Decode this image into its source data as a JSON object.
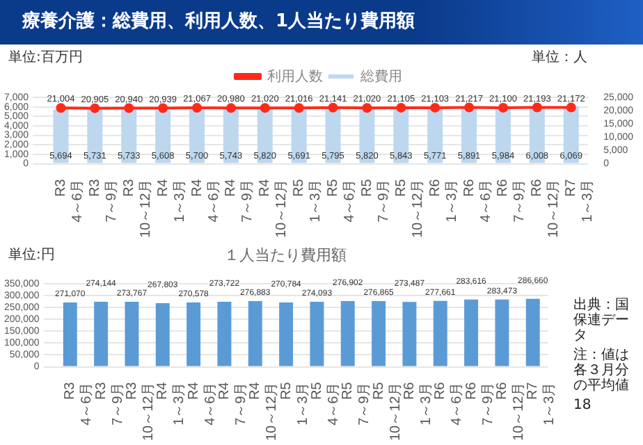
{
  "chart_data": [
    {
      "type": "bar",
      "title": "療養介護：総費用、利用人数、1人当たり費用額",
      "ylabel": "単位:百万円",
      "y2label": "単位：人",
      "categories": [
        "R3\n4～6月",
        "R3\n7～9月",
        "R3\n10～12月",
        "R4\n1～3月",
        "R4\n4～6月",
        "R4\n7～9月",
        "R4\n10～12月",
        "R5\n1～3月",
        "R5\n4～6月",
        "R5\n7～9月",
        "R5\n10～12月",
        "R6\n1～3月",
        "R6\n4～6月",
        "R6\n7～9月",
        "R6\n10～12月",
        "R7\n1～3月"
      ],
      "series": [
        {
          "name": "総費用",
          "type": "bar",
          "color": "#bdd7ee",
          "values": [
            5694,
            5731,
            5733,
            5608,
            5700,
            5743,
            5820,
            5691,
            5795,
            5820,
            5843,
            5771,
            5891,
            5984,
            6008,
            6069
          ],
          "value_labels": [
            "5,694",
            "5,731",
            "5,733",
            "5,608",
            "5,700",
            "5,743",
            "5,820",
            "5,691",
            "5,795",
            "5,820",
            "5,843",
            "5,771",
            "5,891",
            "5,984",
            "6,008",
            "6,069"
          ]
        },
        {
          "name": "利用人数",
          "type": "line",
          "axis": "y2",
          "color": "#ff2a1a",
          "values": [
            21004,
            20905,
            20940,
            20939,
            21067,
            20980,
            21020,
            21016,
            21141,
            21020,
            21105,
            21103,
            21217,
            21100,
            21193,
            21172
          ],
          "value_labels": [
            "21,004",
            "20,905",
            "20,940",
            "20,939",
            "21,067",
            "20,980",
            "21,020",
            "21,016",
            "21,141",
            "21,020",
            "21,105",
            "21,103",
            "21,217",
            "21,100",
            "21,193",
            "21,172"
          ]
        }
      ],
      "ylim": [
        0,
        7000
      ],
      "yticks": [
        0,
        {
          "value": 1000,
          "label": "1,000"
        },
        {
          "value": 2000,
          "label": "2,000"
        },
        {
          "value": 3000,
          "label": "3,000"
        },
        {
          "value": 4000,
          "label": "4,000"
        },
        {
          "value": 5000,
          "label": "5,000"
        },
        {
          "value": 6000,
          "label": "6,000"
        },
        {
          "value": 7000,
          "label": "7,000"
        }
      ],
      "y2lim": [
        0,
        25000
      ],
      "y2ticks": [
        0,
        {
          "value": 5000,
          "label": "5,000"
        },
        {
          "value": 10000,
          "label": "10,000"
        },
        {
          "value": 15000,
          "label": "15,000"
        },
        {
          "value": 20000,
          "label": "20,000"
        },
        {
          "value": 25000,
          "label": "25,000"
        }
      ],
      "grid": "y",
      "legend": "top",
      "marker": "circle"
    },
    {
      "type": "bar",
      "title": "１人当たり費用額",
      "ylabel": "単位:円",
      "categories": [
        "R3\n4～6月",
        "R3\n7～9月",
        "R3\n10～12月",
        "R4\n1～3月",
        "R4\n4～6月",
        "R4\n7～9月",
        "R4\n10～12月",
        "R5\n1～3月",
        "R5\n4～6月",
        "R5\n7～9月",
        "R5\n10～12月",
        "R6\n1～3月",
        "R6\n4～6月",
        "R6\n7～9月",
        "R6\n10～12月",
        "R7\n1～3月"
      ],
      "series": [
        {
          "color": "#5b9bd5",
          "values": [
            271070,
            274144,
            273767,
            267803,
            270578,
            273722,
            276883,
            270784,
            274093,
            276902,
            276865,
            273487,
            277661,
            283616,
            283473,
            286660
          ],
          "value_labels": [
            "271,070",
            "274,144",
            "273,767",
            "267,803",
            "270,578",
            "273,722",
            "276,883",
            "270,784",
            "274,093",
            "276,902",
            "276,865",
            "273,487",
            "277,661",
            "283,616",
            "283,473",
            "286,660"
          ]
        }
      ],
      "ylim": [
        0,
        350000
      ],
      "yticks": [
        0,
        {
          "value": 50000,
          "label": "50,000"
        },
        {
          "value": 100000,
          "label": "100,000"
        },
        {
          "value": 150000,
          "label": "150,000"
        },
        {
          "value": 200000,
          "label": "200,000"
        },
        {
          "value": 250000,
          "label": "250,000"
        },
        {
          "value": 300000,
          "label": "300,000"
        },
        {
          "value": 350000,
          "label": "350,000"
        }
      ],
      "grid": "y",
      "annotations": [
        "出典：国保連データ",
        "注：値は各３月分の平均値",
        "18"
      ]
    }
  ]
}
